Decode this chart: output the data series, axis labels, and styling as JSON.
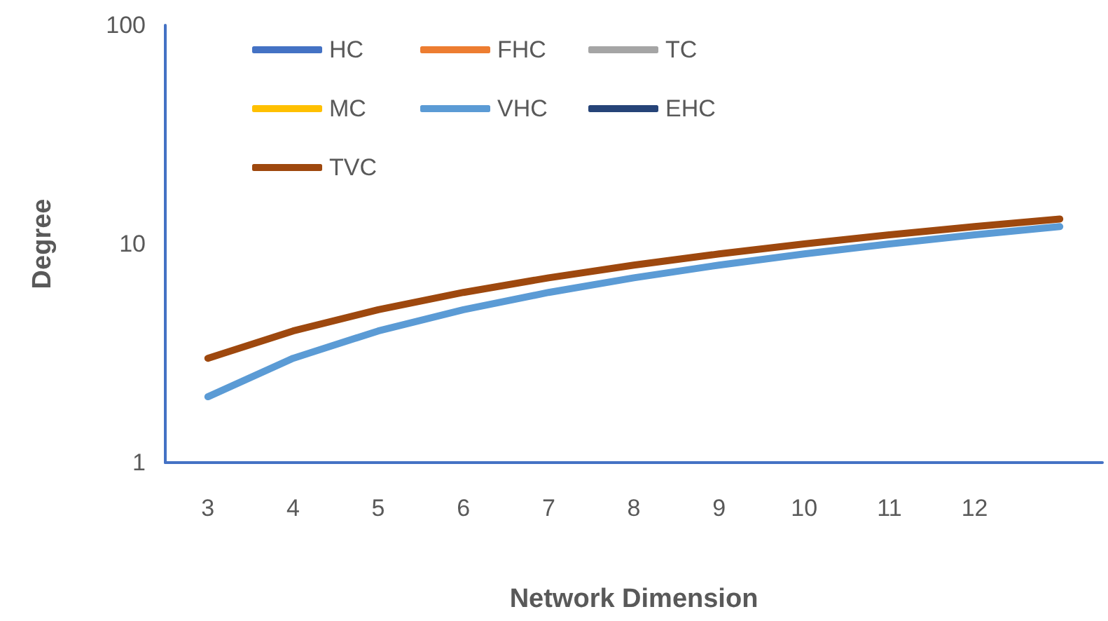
{
  "chart_data": {
    "type": "line",
    "xlabel": "Network Dimension",
    "ylabel": "Degree",
    "categories": [
      "3",
      "4",
      "5",
      "6",
      "7",
      "8",
      "9",
      "10",
      "11",
      "12",
      null
    ],
    "series": [
      {
        "name": "HC",
        "color": "#4472c4",
        "values": [
          null,
          null,
          null,
          null,
          null,
          null,
          null,
          null,
          null,
          null,
          null
        ]
      },
      {
        "name": "FHC",
        "color": "#ed7d31",
        "values": [
          null,
          null,
          null,
          null,
          null,
          null,
          null,
          null,
          null,
          null,
          null
        ]
      },
      {
        "name": "TC",
        "color": "#a5a5a5",
        "values": [
          null,
          null,
          null,
          null,
          null,
          null,
          null,
          null,
          null,
          null,
          null
        ]
      },
      {
        "name": "MC",
        "color": "#ffc000",
        "values": [
          null,
          null,
          null,
          null,
          null,
          null,
          null,
          null,
          null,
          null,
          null
        ]
      },
      {
        "name": "VHC",
        "color": "#5b9bd5",
        "values": [
          2,
          3,
          4,
          5,
          6,
          7,
          8,
          9,
          10,
          11,
          12
        ]
      },
      {
        "name": "EHC",
        "color": "#264478",
        "values": [
          null,
          null,
          null,
          null,
          null,
          null,
          null,
          null,
          null,
          null,
          null
        ]
      },
      {
        "name": "TVC",
        "color": "#9e480e",
        "values": [
          3,
          4,
          5,
          6,
          7,
          8,
          9,
          10,
          11,
          12,
          13
        ]
      }
    ],
    "ylim": [
      1,
      100
    ],
    "yticks": [
      1,
      10,
      100
    ],
    "log": true,
    "grid": false,
    "legend": "top left",
    "marker": "none",
    "line_style": "solid"
  }
}
